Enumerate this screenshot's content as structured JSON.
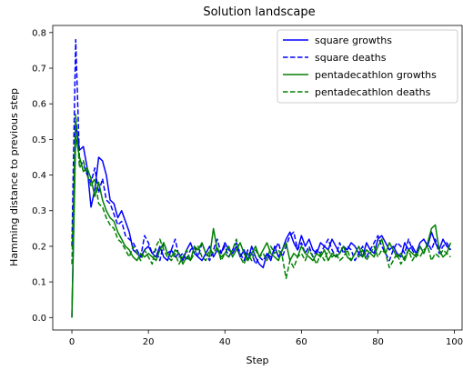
{
  "chart_data": {
    "type": "line",
    "title": "Solution landscape",
    "xlabel": "Step",
    "ylabel": "Hamming distance to previous step",
    "xlim": [
      -5,
      102
    ],
    "ylim": [
      -0.035,
      0.82
    ],
    "xticks": [
      0,
      20,
      40,
      60,
      80,
      100
    ],
    "yticks": [
      0.0,
      0.1,
      0.2,
      0.3,
      0.4,
      0.5,
      0.6,
      0.7,
      0.8
    ],
    "grid": false,
    "legend_position": "top-right",
    "x": [
      0,
      1,
      2,
      3,
      4,
      5,
      6,
      7,
      8,
      9,
      10,
      11,
      12,
      13,
      14,
      15,
      16,
      17,
      18,
      19,
      20,
      21,
      22,
      23,
      24,
      25,
      26,
      27,
      28,
      29,
      30,
      31,
      32,
      33,
      34,
      35,
      36,
      37,
      38,
      39,
      40,
      41,
      42,
      43,
      44,
      45,
      46,
      47,
      48,
      49,
      50,
      51,
      52,
      53,
      54,
      55,
      56,
      57,
      58,
      59,
      60,
      61,
      62,
      63,
      64,
      65,
      66,
      67,
      68,
      69,
      70,
      71,
      72,
      73,
      74,
      75,
      76,
      77,
      78,
      79,
      80,
      81,
      82,
      83,
      84,
      85,
      86,
      87,
      88,
      89,
      90,
      91,
      92,
      93,
      94,
      95,
      96,
      97,
      98,
      99
    ],
    "series": [
      {
        "name": "square growths",
        "color": "#0000ff",
        "dash": "solid",
        "values": [
          0.0,
          0.55,
          0.47,
          0.48,
          0.42,
          0.31,
          0.36,
          0.45,
          0.44,
          0.4,
          0.33,
          0.32,
          0.28,
          0.3,
          0.27,
          0.24,
          0.19,
          0.18,
          0.17,
          0.19,
          0.2,
          0.18,
          0.17,
          0.2,
          0.17,
          0.16,
          0.19,
          0.17,
          0.18,
          0.16,
          0.19,
          0.21,
          0.18,
          0.17,
          0.16,
          0.18,
          0.2,
          0.17,
          0.19,
          0.18,
          0.21,
          0.19,
          0.18,
          0.2,
          0.17,
          0.19,
          0.16,
          0.2,
          0.17,
          0.15,
          0.14,
          0.18,
          0.16,
          0.2,
          0.17,
          0.19,
          0.22,
          0.24,
          0.21,
          0.19,
          0.23,
          0.2,
          0.22,
          0.19,
          0.18,
          0.21,
          0.2,
          0.19,
          0.22,
          0.2,
          0.18,
          0.2,
          0.19,
          0.21,
          0.2,
          0.18,
          0.17,
          0.21,
          0.19,
          0.18,
          0.22,
          0.23,
          0.21,
          0.19,
          0.2,
          0.18,
          0.17,
          0.21,
          0.19,
          0.2,
          0.18,
          0.21,
          0.22,
          0.2,
          0.24,
          0.21,
          0.19,
          0.22,
          0.2,
          0.19
        ]
      },
      {
        "name": "square deaths",
        "color": "#0000ff",
        "dash": "dashed",
        "values": [
          0.2,
          0.78,
          0.44,
          0.43,
          0.4,
          0.38,
          0.42,
          0.35,
          0.39,
          0.33,
          0.32,
          0.29,
          0.26,
          0.27,
          0.23,
          0.22,
          0.21,
          0.19,
          0.17,
          0.23,
          0.21,
          0.18,
          0.19,
          0.16,
          0.21,
          0.18,
          0.19,
          0.22,
          0.17,
          0.18,
          0.16,
          0.19,
          0.2,
          0.17,
          0.21,
          0.18,
          0.16,
          0.19,
          0.22,
          0.18,
          0.2,
          0.17,
          0.19,
          0.21,
          0.18,
          0.16,
          0.19,
          0.18,
          0.15,
          0.17,
          0.16,
          0.18,
          0.17,
          0.19,
          0.21,
          0.17,
          0.2,
          0.23,
          0.24,
          0.19,
          0.21,
          0.18,
          0.2,
          0.17,
          0.19,
          0.18,
          0.2,
          0.22,
          0.19,
          0.17,
          0.21,
          0.18,
          0.2,
          0.19,
          0.16,
          0.18,
          0.2,
          0.17,
          0.19,
          0.21,
          0.23,
          0.2,
          0.18,
          0.16,
          0.19,
          0.21,
          0.2,
          0.18,
          0.22,
          0.19,
          0.17,
          0.2,
          0.18,
          0.21,
          0.19,
          0.22,
          0.18,
          0.2,
          0.21,
          0.19
        ]
      },
      {
        "name": "pentadecathlon growths",
        "color": "#008000",
        "dash": "solid",
        "values": [
          0.0,
          0.51,
          0.45,
          0.41,
          0.42,
          0.39,
          0.34,
          0.38,
          0.33,
          0.3,
          0.28,
          0.27,
          0.24,
          0.22,
          0.2,
          0.19,
          0.17,
          0.16,
          0.18,
          0.17,
          0.18,
          0.17,
          0.16,
          0.19,
          0.21,
          0.18,
          0.17,
          0.19,
          0.18,
          0.15,
          0.17,
          0.16,
          0.2,
          0.19,
          0.21,
          0.18,
          0.17,
          0.25,
          0.19,
          0.17,
          0.18,
          0.2,
          0.17,
          0.19,
          0.21,
          0.18,
          0.16,
          0.18,
          0.2,
          0.17,
          0.19,
          0.21,
          0.18,
          0.17,
          0.16,
          0.19,
          0.21,
          0.16,
          0.18,
          0.17,
          0.2,
          0.18,
          0.17,
          0.16,
          0.18,
          0.17,
          0.19,
          0.16,
          0.18,
          0.17,
          0.18,
          0.2,
          0.17,
          0.16,
          0.18,
          0.2,
          0.17,
          0.19,
          0.18,
          0.17,
          0.2,
          0.22,
          0.18,
          0.21,
          0.19,
          0.17,
          0.18,
          0.16,
          0.19,
          0.18,
          0.17,
          0.2,
          0.18,
          0.21,
          0.25,
          0.26,
          0.19,
          0.17,
          0.18,
          0.21
        ]
      },
      {
        "name": "pentadecathlon deaths",
        "color": "#008000",
        "dash": "dashed",
        "values": [
          0.15,
          0.57,
          0.42,
          0.44,
          0.4,
          0.37,
          0.39,
          0.32,
          0.31,
          0.28,
          0.26,
          0.25,
          0.22,
          0.21,
          0.19,
          0.17,
          0.2,
          0.18,
          0.16,
          0.19,
          0.17,
          0.15,
          0.2,
          0.22,
          0.19,
          0.17,
          0.16,
          0.18,
          0.15,
          0.17,
          0.19,
          0.16,
          0.18,
          0.2,
          0.17,
          0.16,
          0.19,
          0.18,
          0.2,
          0.16,
          0.18,
          0.17,
          0.19,
          0.22,
          0.17,
          0.15,
          0.18,
          0.16,
          0.19,
          0.17,
          0.18,
          0.16,
          0.2,
          0.18,
          0.19,
          0.17,
          0.11,
          0.16,
          0.14,
          0.17,
          0.18,
          0.16,
          0.19,
          0.17,
          0.15,
          0.18,
          0.16,
          0.19,
          0.17,
          0.18,
          0.16,
          0.17,
          0.19,
          0.16,
          0.18,
          0.17,
          0.19,
          0.16,
          0.18,
          0.2,
          0.17,
          0.19,
          0.18,
          0.14,
          0.16,
          0.18,
          0.15,
          0.17,
          0.19,
          0.16,
          0.18,
          0.17,
          0.19,
          0.2,
          0.16,
          0.18,
          0.17,
          0.19,
          0.18,
          0.17
        ]
      }
    ]
  }
}
